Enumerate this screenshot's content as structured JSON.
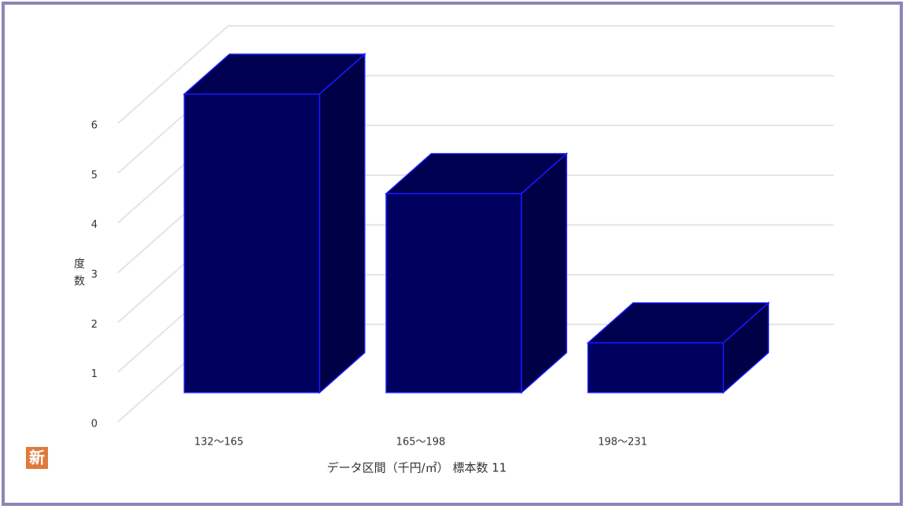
{
  "chart_data": {
    "type": "bar3d",
    "categories": [
      "132～165",
      "165～198",
      "198～231"
    ],
    "values": [
      6,
      4,
      1
    ],
    "color": "#00005e",
    "y_label": "度数",
    "x_label": "データ区間（千円/㎡） 標本数 11",
    "ylim": [
      0,
      6
    ],
    "yticks": [
      0,
      1,
      2,
      3,
      4,
      5,
      6
    ],
    "grid": true
  },
  "badge": "新"
}
